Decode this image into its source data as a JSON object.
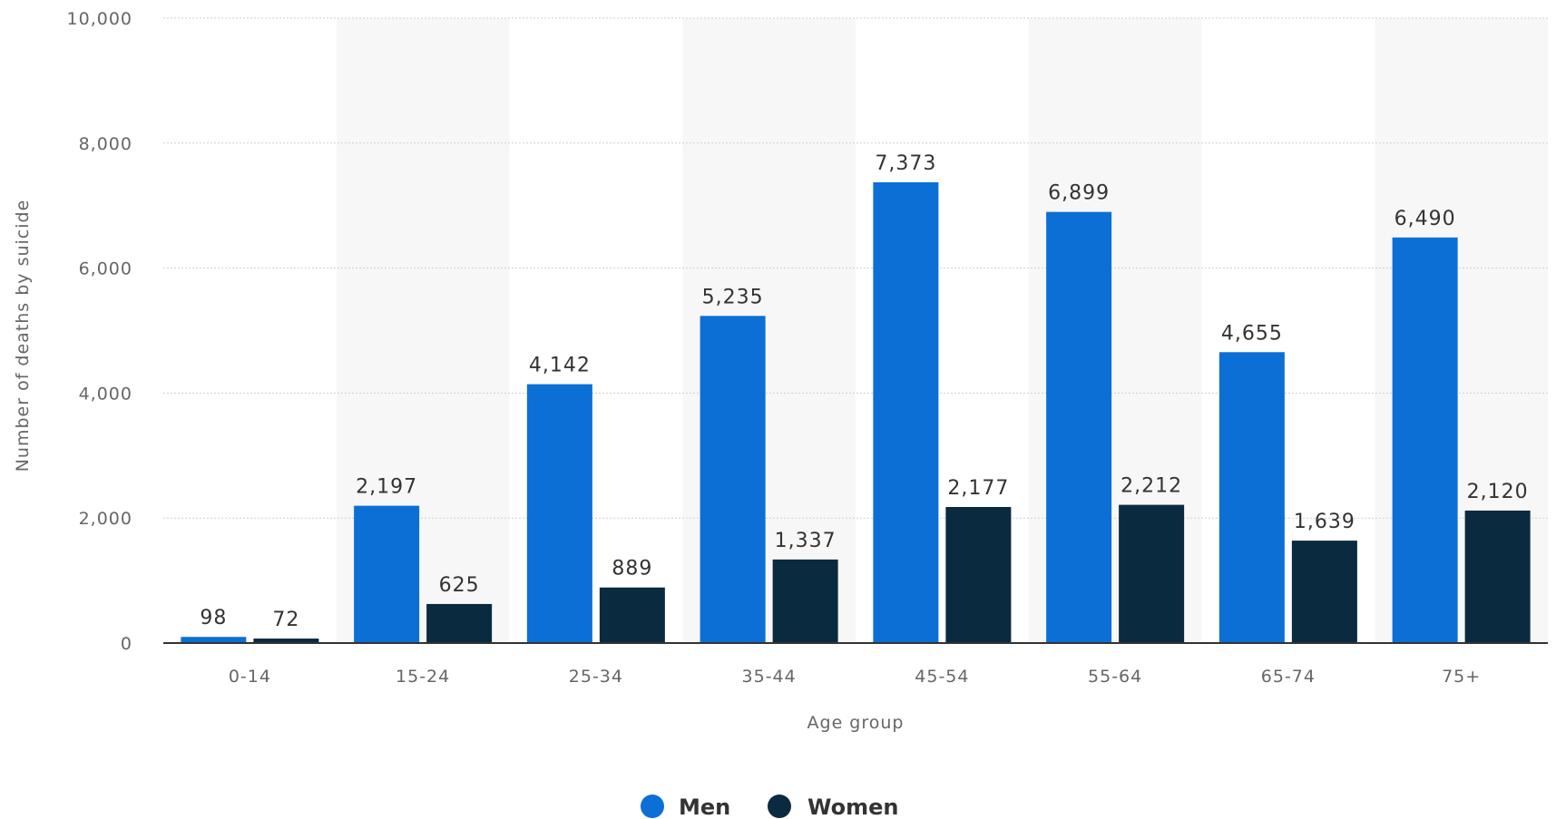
{
  "chart_data": {
    "type": "bar",
    "title": "",
    "xlabel": "Age group",
    "ylabel": "Number of deaths by suicide",
    "ylim": [
      0,
      10000
    ],
    "yticks": [
      0,
      2000,
      4000,
      6000,
      8000,
      10000
    ],
    "ytick_labels": [
      "0",
      "2,000",
      "4,000",
      "6,000",
      "8,000",
      "10,000"
    ],
    "grid": true,
    "legend_position": "bottom-center",
    "categories": [
      "0-14",
      "15-24",
      "25-34",
      "35-44",
      "45-54",
      "55-64",
      "65-74",
      "75+"
    ],
    "series": [
      {
        "name": "Men",
        "color": "#0b6fd6",
        "values": [
          98,
          2197,
          4142,
          5235,
          7373,
          6899,
          4655,
          6490
        ],
        "labels": [
          "98",
          "2,197",
          "4,142",
          "5,235",
          "7,373",
          "6,899",
          "4,655",
          "6,490"
        ]
      },
      {
        "name": "Women",
        "color": "#0a2a40",
        "values": [
          72,
          625,
          889,
          1337,
          2177,
          2212,
          1639,
          2120
        ],
        "labels": [
          "72",
          "625",
          "889",
          "1,337",
          "2,177",
          "2,212",
          "1,639",
          "2,120"
        ]
      }
    ]
  }
}
